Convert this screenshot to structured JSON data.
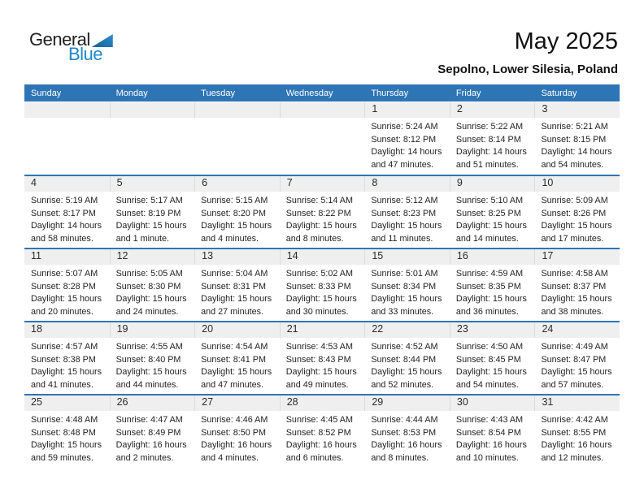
{
  "logo": {
    "text_top": "General",
    "text_bottom": "Blue"
  },
  "title": "May 2025",
  "subtitle": "Sepolno, Lower Silesia, Poland",
  "colors": {
    "header_blue": "#2E75B6",
    "divider_blue": "#2E75B6",
    "day_band_gray": "#EFEFEF",
    "logo_blue": "#1E87C9",
    "text_dark": "#1F1F1F"
  },
  "calendar": {
    "weekdays": [
      "Sunday",
      "Monday",
      "Tuesday",
      "Wednesday",
      "Thursday",
      "Friday",
      "Saturday"
    ],
    "weeks": [
      [
        {
          "day": "",
          "lines": []
        },
        {
          "day": "",
          "lines": []
        },
        {
          "day": "",
          "lines": []
        },
        {
          "day": "",
          "lines": []
        },
        {
          "day": "1",
          "lines": [
            "Sunrise: 5:24 AM",
            "Sunset: 8:12 PM",
            "Daylight: 14 hours",
            "and 47 minutes."
          ]
        },
        {
          "day": "2",
          "lines": [
            "Sunrise: 5:22 AM",
            "Sunset: 8:14 PM",
            "Daylight: 14 hours",
            "and 51 minutes."
          ]
        },
        {
          "day": "3",
          "lines": [
            "Sunrise: 5:21 AM",
            "Sunset: 8:15 PM",
            "Daylight: 14 hours",
            "and 54 minutes."
          ]
        }
      ],
      [
        {
          "day": "4",
          "lines": [
            "Sunrise: 5:19 AM",
            "Sunset: 8:17 PM",
            "Daylight: 14 hours",
            "and 58 minutes."
          ]
        },
        {
          "day": "5",
          "lines": [
            "Sunrise: 5:17 AM",
            "Sunset: 8:19 PM",
            "Daylight: 15 hours",
            "and 1 minute."
          ]
        },
        {
          "day": "6",
          "lines": [
            "Sunrise: 5:15 AM",
            "Sunset: 8:20 PM",
            "Daylight: 15 hours",
            "and 4 minutes."
          ]
        },
        {
          "day": "7",
          "lines": [
            "Sunrise: 5:14 AM",
            "Sunset: 8:22 PM",
            "Daylight: 15 hours",
            "and 8 minutes."
          ]
        },
        {
          "day": "8",
          "lines": [
            "Sunrise: 5:12 AM",
            "Sunset: 8:23 PM",
            "Daylight: 15 hours",
            "and 11 minutes."
          ]
        },
        {
          "day": "9",
          "lines": [
            "Sunrise: 5:10 AM",
            "Sunset: 8:25 PM",
            "Daylight: 15 hours",
            "and 14 minutes."
          ]
        },
        {
          "day": "10",
          "lines": [
            "Sunrise: 5:09 AM",
            "Sunset: 8:26 PM",
            "Daylight: 15 hours",
            "and 17 minutes."
          ]
        }
      ],
      [
        {
          "day": "11",
          "lines": [
            "Sunrise: 5:07 AM",
            "Sunset: 8:28 PM",
            "Daylight: 15 hours",
            "and 20 minutes."
          ]
        },
        {
          "day": "12",
          "lines": [
            "Sunrise: 5:05 AM",
            "Sunset: 8:30 PM",
            "Daylight: 15 hours",
            "and 24 minutes."
          ]
        },
        {
          "day": "13",
          "lines": [
            "Sunrise: 5:04 AM",
            "Sunset: 8:31 PM",
            "Daylight: 15 hours",
            "and 27 minutes."
          ]
        },
        {
          "day": "14",
          "lines": [
            "Sunrise: 5:02 AM",
            "Sunset: 8:33 PM",
            "Daylight: 15 hours",
            "and 30 minutes."
          ]
        },
        {
          "day": "15",
          "lines": [
            "Sunrise: 5:01 AM",
            "Sunset: 8:34 PM",
            "Daylight: 15 hours",
            "and 33 minutes."
          ]
        },
        {
          "day": "16",
          "lines": [
            "Sunrise: 4:59 AM",
            "Sunset: 8:35 PM",
            "Daylight: 15 hours",
            "and 36 minutes."
          ]
        },
        {
          "day": "17",
          "lines": [
            "Sunrise: 4:58 AM",
            "Sunset: 8:37 PM",
            "Daylight: 15 hours",
            "and 38 minutes."
          ]
        }
      ],
      [
        {
          "day": "18",
          "lines": [
            "Sunrise: 4:57 AM",
            "Sunset: 8:38 PM",
            "Daylight: 15 hours",
            "and 41 minutes."
          ]
        },
        {
          "day": "19",
          "lines": [
            "Sunrise: 4:55 AM",
            "Sunset: 8:40 PM",
            "Daylight: 15 hours",
            "and 44 minutes."
          ]
        },
        {
          "day": "20",
          "lines": [
            "Sunrise: 4:54 AM",
            "Sunset: 8:41 PM",
            "Daylight: 15 hours",
            "and 47 minutes."
          ]
        },
        {
          "day": "21",
          "lines": [
            "Sunrise: 4:53 AM",
            "Sunset: 8:43 PM",
            "Daylight: 15 hours",
            "and 49 minutes."
          ]
        },
        {
          "day": "22",
          "lines": [
            "Sunrise: 4:52 AM",
            "Sunset: 8:44 PM",
            "Daylight: 15 hours",
            "and 52 minutes."
          ]
        },
        {
          "day": "23",
          "lines": [
            "Sunrise: 4:50 AM",
            "Sunset: 8:45 PM",
            "Daylight: 15 hours",
            "and 54 minutes."
          ]
        },
        {
          "day": "24",
          "lines": [
            "Sunrise: 4:49 AM",
            "Sunset: 8:47 PM",
            "Daylight: 15 hours",
            "and 57 minutes."
          ]
        }
      ],
      [
        {
          "day": "25",
          "lines": [
            "Sunrise: 4:48 AM",
            "Sunset: 8:48 PM",
            "Daylight: 15 hours",
            "and 59 minutes."
          ]
        },
        {
          "day": "26",
          "lines": [
            "Sunrise: 4:47 AM",
            "Sunset: 8:49 PM",
            "Daylight: 16 hours",
            "and 2 minutes."
          ]
        },
        {
          "day": "27",
          "lines": [
            "Sunrise: 4:46 AM",
            "Sunset: 8:50 PM",
            "Daylight: 16 hours",
            "and 4 minutes."
          ]
        },
        {
          "day": "28",
          "lines": [
            "Sunrise: 4:45 AM",
            "Sunset: 8:52 PM",
            "Daylight: 16 hours",
            "and 6 minutes."
          ]
        },
        {
          "day": "29",
          "lines": [
            "Sunrise: 4:44 AM",
            "Sunset: 8:53 PM",
            "Daylight: 16 hours",
            "and 8 minutes."
          ]
        },
        {
          "day": "30",
          "lines": [
            "Sunrise: 4:43 AM",
            "Sunset: 8:54 PM",
            "Daylight: 16 hours",
            "and 10 minutes."
          ]
        },
        {
          "day": "31",
          "lines": [
            "Sunrise: 4:42 AM",
            "Sunset: 8:55 PM",
            "Daylight: 16 hours",
            "and 12 minutes."
          ]
        }
      ]
    ]
  }
}
